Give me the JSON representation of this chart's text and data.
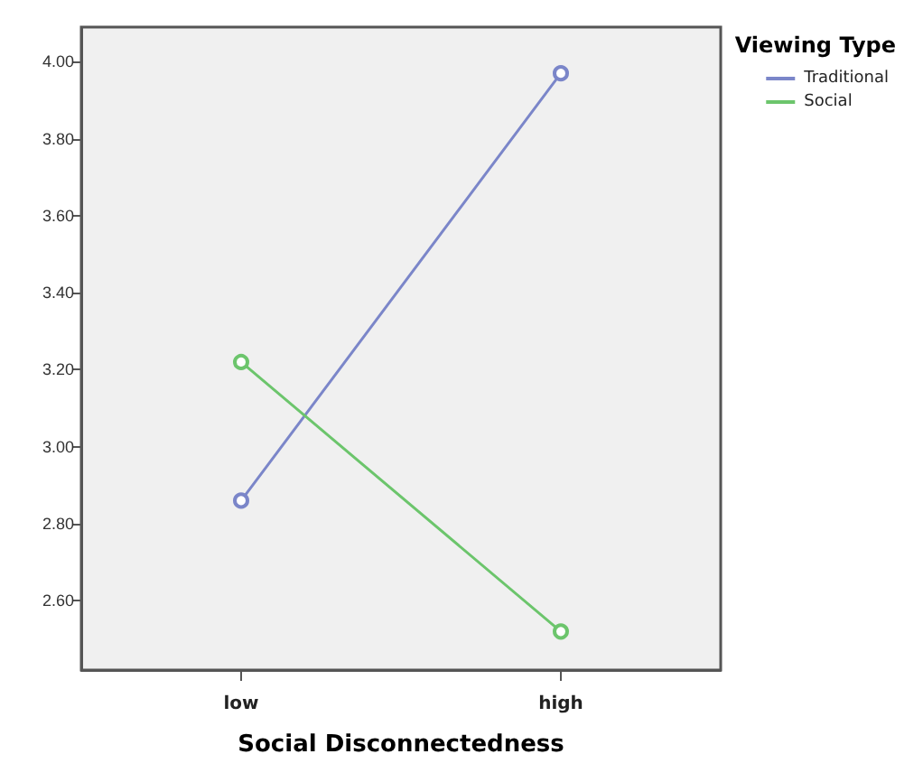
{
  "chart_data": {
    "type": "line",
    "xlabel": "Social Disconnectedness",
    "legend_title": "Viewing Type",
    "categories": [
      "low",
      "high"
    ],
    "series": [
      {
        "name": "Traditional",
        "color": "#7b86c9",
        "values": [
          2.86,
          3.97
        ]
      },
      {
        "name": "Social",
        "color": "#6cc56c",
        "values": [
          3.22,
          2.52
        ]
      }
    ],
    "ylim": [
      2.42,
      4.09
    ],
    "yticks": [
      {
        "value": 2.6,
        "label": "2.60"
      },
      {
        "value": 2.8,
        "label": "2.80"
      },
      {
        "value": 3.0,
        "label": "3.00"
      },
      {
        "value": 3.2,
        "label": "3.20"
      },
      {
        "value": 3.4,
        "label": "3.40"
      },
      {
        "value": 3.6,
        "label": "3.60"
      },
      {
        "value": 3.8,
        "label": "3.80"
      },
      {
        "value": 4.0,
        "label": "4.00"
      }
    ],
    "grid": false,
    "legend": "top right",
    "marker": "circle",
    "line_style": "solid"
  }
}
